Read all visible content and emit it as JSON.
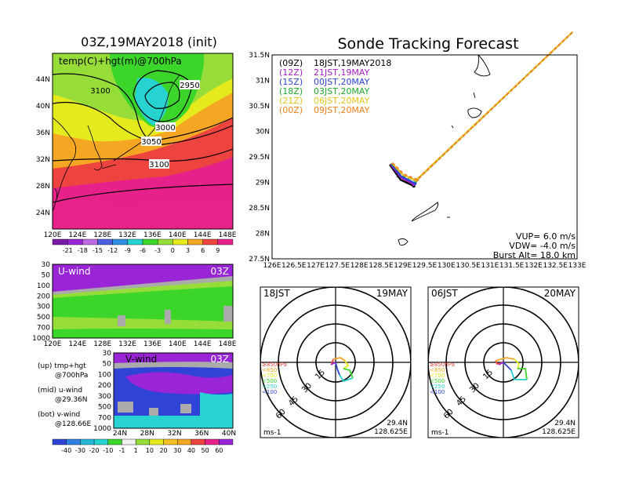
{
  "colors": {
    "bg_purple": "#9a25d6",
    "green": "#3cd62a",
    "light_green": "#96dd3a",
    "yellow": "#e4ea1c",
    "orange": "#f5a623",
    "red": "#ee4440",
    "pink": "#e6228a",
    "cyan": "#27d3d0",
    "blue": "#2f43d6",
    "gray": "#aaaaaa"
  },
  "icons": [
    "hodograph-grid-icon",
    "sounding-track-icon"
  ],
  "left_map": {
    "title": "03Z,19MAY2018 (init)",
    "label": "temp(C)+hgt(m)@700hPa",
    "contours": [
      "3100",
      "3050",
      "3000",
      "2950",
      "3100"
    ],
    "lat_ticks": [
      "44N",
      "40N",
      "36N",
      "32N",
      "28N",
      "24N"
    ],
    "lon_ticks": [
      "120E",
      "124E",
      "128E",
      "132E",
      "136E",
      "140E",
      "144E",
      "148E"
    ],
    "colorbar_ticks": [
      "-21",
      "-18",
      "-15",
      "-12",
      "-9",
      "-6",
      "-3",
      "0",
      "3",
      "6",
      "9"
    ]
  },
  "u_panel": {
    "label": "U-wind",
    "time": "03Z",
    "p_ticks": [
      "30",
      "50",
      "100",
      "200",
      "300",
      "500",
      "700",
      "1000"
    ],
    "lon_ticks": [
      "120E",
      "124E",
      "128E",
      "132E",
      "136E",
      "140E",
      "144E",
      "148E"
    ]
  },
  "v_panel": {
    "label": "V-wind",
    "time": "03Z",
    "p_ticks": [
      "30",
      "50",
      "100",
      "200",
      "300",
      "500",
      "700",
      "1000"
    ],
    "lat_ticks": [
      "24N",
      "28N",
      "32N",
      "36N",
      "40N"
    ]
  },
  "legend_notes": [
    "(up) tmp+hgt",
    "@700hPa",
    "(mid) u-wind",
    "@29.36N",
    "(bot) v-wind",
    "@128.66E"
  ],
  "wind_colorbar_ticks": [
    "-40",
    "-30",
    "-20",
    "-10",
    "-1",
    "1",
    "10",
    "20",
    "30",
    "40",
    "50",
    "60"
  ],
  "track_map": {
    "title": "Sonde Tracking Forecast",
    "legend": [
      {
        "z": "(09Z)",
        "text": "18JST,19MAY2018",
        "color": "#000000"
      },
      {
        "z": "(12Z)",
        "text": "21JST,19MAY",
        "color": "#a020c0"
      },
      {
        "z": "(15Z)",
        "text": "00JST,20MAY",
        "color": "#2f43d6"
      },
      {
        "z": "(18Z)",
        "text": "03JST,20MAY",
        "color": "#22a630"
      },
      {
        "z": "(21Z)",
        "text": "06JST,20MAY",
        "color": "#e7c423"
      },
      {
        "z": "(00Z)",
        "text": "09JST,20MAY",
        "color": "#f08020"
      }
    ],
    "lat_ticks": [
      "31.5N",
      "31N",
      "30.5N",
      "30N",
      "29.5N",
      "29N",
      "28.5N",
      "28N",
      "27.5N"
    ],
    "lon_ticks": [
      "126E",
      "126.5E",
      "127E",
      "127.5E",
      "128E",
      "128.5E",
      "129E",
      "129.5E",
      "130E",
      "130.5E",
      "131E",
      "131.5E",
      "132E",
      "132.5E",
      "133E"
    ],
    "vup": "VUP= 6.0 m/s",
    "vdw": "VDW= -4.0 m/s",
    "burst": "Burst Alt= 18.0 km"
  },
  "hodographs": [
    {
      "time": "18JST",
      "date": "19MAY",
      "rings": [
        "15",
        "30",
        "45",
        "60"
      ],
      "levels": [
        "≥850hPa",
        "<850",
        "<700",
        "<500",
        "<250",
        "<100"
      ],
      "unit": "ms-1",
      "lat": "29.4N",
      "lon": "128.625E"
    },
    {
      "time": "06JST",
      "date": "20MAY",
      "rings": [
        "15",
        "30",
        "45",
        "60"
      ],
      "levels": [
        "≥850hPa",
        "<850",
        "<700",
        "<500",
        "<250",
        "<100"
      ],
      "unit": "ms-1",
      "lat": "29.4N",
      "lon": "128.625E"
    }
  ],
  "chart_data": [
    {
      "type": "line",
      "title": "Sonde Tracking Forecast",
      "xlabel": "",
      "ylabel": "",
      "xlim": [
        126,
        133
      ],
      "ylim": [
        27.5,
        31.5
      ],
      "series": [
        {
          "name": "18JST,19MAY2018",
          "x": [
            128.7,
            128.95,
            129.25
          ],
          "y": [
            29.35,
            29.05,
            28.93
          ]
        },
        {
          "name": "21JST,19MAY",
          "x": [
            128.72,
            128.95,
            129.25
          ],
          "y": [
            29.36,
            29.1,
            28.96
          ]
        },
        {
          "name": "00JST,20MAY",
          "x": [
            128.73,
            128.96,
            129.28
          ],
          "y": [
            29.37,
            29.12,
            28.98
          ]
        },
        {
          "name": "03JST,20MAY",
          "x": [
            128.74,
            129.0,
            129.3,
            132.9
          ],
          "y": [
            29.37,
            29.14,
            29.03,
            31.95
          ]
        },
        {
          "name": "06JST,20MAY",
          "x": [
            128.75,
            129.0,
            129.3,
            132.9
          ],
          "y": [
            29.38,
            29.15,
            29.04,
            31.95
          ]
        },
        {
          "name": "09JST,20MAY",
          "x": [
            128.76,
            129.02,
            129.33,
            132.9
          ],
          "y": [
            29.38,
            29.16,
            29.05,
            31.95
          ]
        }
      ]
    },
    {
      "type": "heatmap",
      "title": "temp(C)+hgt(m)@700hPa",
      "xlim": [
        120,
        148
      ],
      "ylim": [
        22,
        47
      ],
      "colorbar": [
        -21,
        -18,
        -15,
        -12,
        -9,
        -6,
        -3,
        0,
        3,
        6,
        9
      ]
    }
  ]
}
